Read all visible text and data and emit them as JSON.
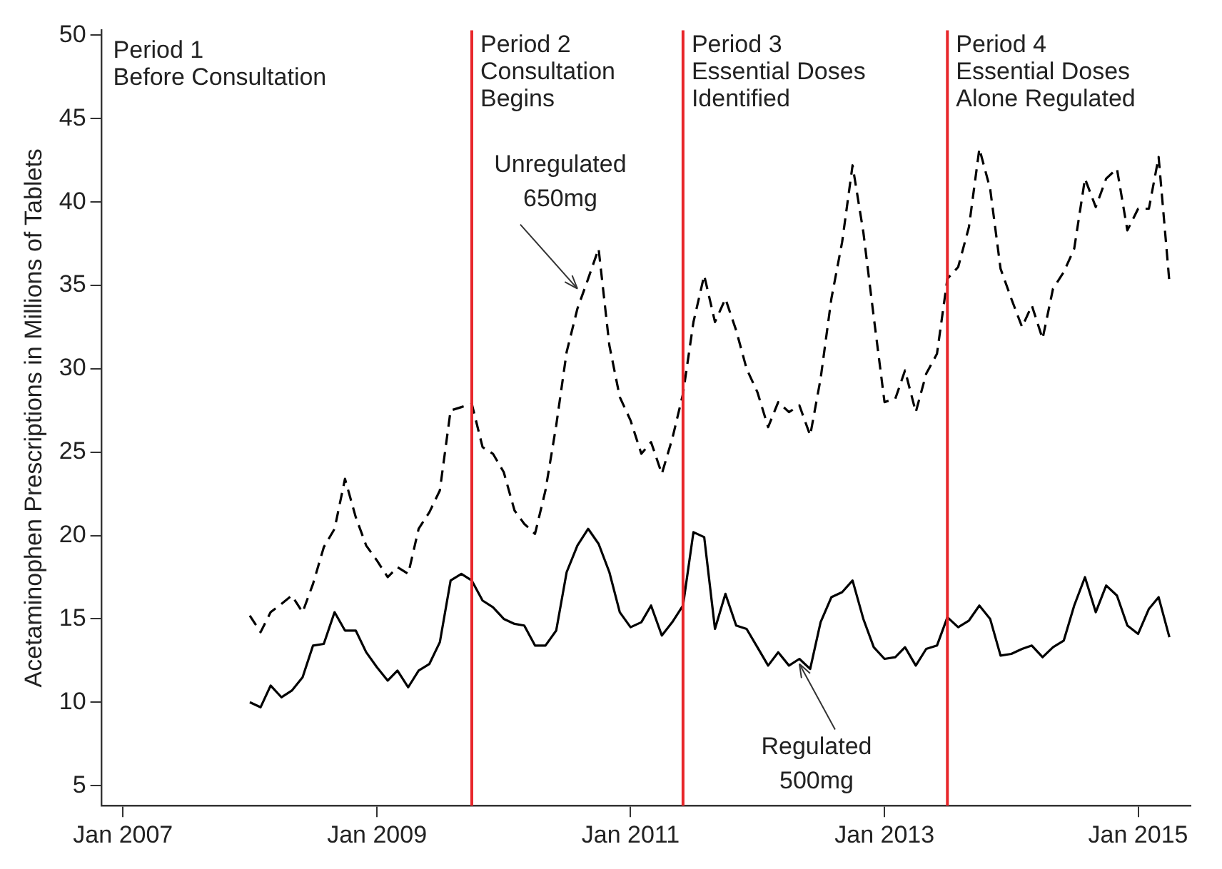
{
  "chart_data": {
    "type": "line",
    "ylabel": "Acetaminophen Prescriptions in Millions of Tablets",
    "x": [
      "2008-01",
      "2008-02",
      "2008-03",
      "2008-04",
      "2008-05",
      "2008-06",
      "2008-07",
      "2008-08",
      "2008-09",
      "2008-10",
      "2008-11",
      "2008-12",
      "2009-01",
      "2009-02",
      "2009-03",
      "2009-04",
      "2009-05",
      "2009-06",
      "2009-07",
      "2009-08",
      "2009-09",
      "2009-10",
      "2009-11",
      "2009-12",
      "2010-01",
      "2010-02",
      "2010-03",
      "2010-04",
      "2010-05",
      "2010-06",
      "2010-07",
      "2010-08",
      "2010-09",
      "2010-10",
      "2010-11",
      "2010-12",
      "2011-01",
      "2011-02",
      "2011-03",
      "2011-04",
      "2011-05",
      "2011-06",
      "2011-07",
      "2011-08",
      "2011-09",
      "2011-10",
      "2011-11",
      "2011-12",
      "2012-01",
      "2012-02",
      "2012-03",
      "2012-04",
      "2012-05",
      "2012-06",
      "2012-07",
      "2012-08",
      "2012-09",
      "2012-10",
      "2012-11",
      "2012-12",
      "2013-01",
      "2013-02",
      "2013-03",
      "2013-04",
      "2013-05",
      "2013-06",
      "2013-07",
      "2013-08",
      "2013-09",
      "2013-10",
      "2013-11",
      "2013-12",
      "2014-01",
      "2014-02",
      "2014-03",
      "2014-04",
      "2014-05",
      "2014-06",
      "2014-07",
      "2014-08",
      "2014-09",
      "2014-10",
      "2014-11",
      "2014-12",
      "2015-01",
      "2015-02",
      "2015-03",
      "2015-04"
    ],
    "series": [
      {
        "color": "#000000",
        "line_style": "dashed",
        "values": [
          15.2,
          14.2,
          15.4,
          15.9,
          16.4,
          15.4,
          17.1,
          19.3,
          20.4,
          23.4,
          21.1,
          19.4,
          18.5,
          17.5,
          18.1,
          17.7,
          20.4,
          21.4,
          22.7,
          27.5,
          27.7,
          27.9,
          25.3,
          24.9,
          23.8,
          21.5,
          20.7,
          20.1,
          22.7,
          26.6,
          31.0,
          33.6,
          35.4,
          37.2,
          31.4,
          28.3,
          26.9,
          24.9,
          25.6,
          23.7,
          25.8,
          28.5,
          32.8,
          35.6,
          32.8,
          34.2,
          32.3,
          30.0,
          28.6,
          26.5,
          28.0,
          27.4,
          27.8,
          26.0,
          29.4,
          34.2,
          37.6,
          42.2,
          38.2,
          33.1,
          28.0,
          28.2,
          29.9,
          27.4,
          29.7,
          30.9,
          35.4,
          36.1,
          38.5,
          43.2,
          40.8,
          36.0,
          34.2,
          32.5,
          33.8,
          31.8,
          34.8,
          35.8,
          37.2,
          41.4,
          39.7,
          41.4,
          42.0,
          38.3,
          39.6,
          39.6,
          42.7,
          35.2
        ]
      },
      {
        "color": "#000000",
        "line_style": "solid",
        "values": [
          10.0,
          9.7,
          11.0,
          10.3,
          10.7,
          11.5,
          13.4,
          13.5,
          15.4,
          14.3,
          14.3,
          13.0,
          12.1,
          11.3,
          11.9,
          10.9,
          11.9,
          12.3,
          13.6,
          17.3,
          17.7,
          17.3,
          16.1,
          15.7,
          15.0,
          14.7,
          14.6,
          13.4,
          13.4,
          14.3,
          17.8,
          19.4,
          20.4,
          19.5,
          17.8,
          15.4,
          14.5,
          14.8,
          15.8,
          14.0,
          14.8,
          15.8,
          20.2,
          19.9,
          14.4,
          16.5,
          14.6,
          14.4,
          13.3,
          12.2,
          13.0,
          12.2,
          12.6,
          12.0,
          14.8,
          16.3,
          16.6,
          17.3,
          15.0,
          13.3,
          12.6,
          12.7,
          13.3,
          12.2,
          13.2,
          13.4,
          15.1,
          14.5,
          14.9,
          15.8,
          15.0,
          12.8,
          12.9,
          13.2,
          13.4,
          12.7,
          13.3,
          13.7,
          15.8,
          17.5,
          15.4,
          17.0,
          16.4,
          14.6,
          14.1,
          15.6,
          16.3,
          13.9
        ]
      }
    ],
    "xlim": [
      "2006-11",
      "2015-06"
    ],
    "xticks": [
      {
        "value": "2007-01",
        "label": "Jan 2007"
      },
      {
        "value": "2009-01",
        "label": "Jan 2009"
      },
      {
        "value": "2011-01",
        "label": "Jan 2011"
      },
      {
        "value": "2013-01",
        "label": "Jan 2013"
      },
      {
        "value": "2015-01",
        "label": "Jan 2015"
      }
    ],
    "ylim": [
      3.8,
      50.3
    ],
    "yticks": [
      5,
      10,
      15,
      20,
      25,
      30,
      35,
      40,
      45,
      50
    ],
    "marker": "none",
    "legend": false,
    "grid": false,
    "ref_lines": [
      {
        "axis": "x",
        "value": "2009-10",
        "label": "Period 2\nConsultation\nBegins",
        "color": "#e8262a"
      },
      {
        "axis": "x",
        "value": "2011-06",
        "label": "Period 3\nEssential Doses\nIdentified",
        "color": "#e8262a"
      },
      {
        "axis": "x",
        "value": "2013-07",
        "label": "Period 4\nEssential Doses\nAlone Regulated",
        "color": "#e8262a"
      }
    ],
    "annotations": [
      "Period 1\nBefore Consultation",
      {
        "text": "Unregulated\n650mg",
        "x": "2010-08",
        "y": 34.8
      },
      {
        "text": "Regulated\n500mg",
        "x": "2012-05",
        "y": 12.3
      }
    ]
  }
}
